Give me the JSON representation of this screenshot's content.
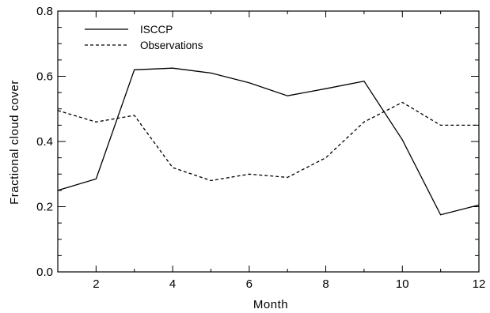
{
  "chart_data": {
    "type": "line",
    "xlabel": "Month",
    "ylabel": "Fractional cloud cover",
    "xlim": [
      1,
      12
    ],
    "ylim": [
      0.0,
      0.8
    ],
    "xticks": [
      2,
      4,
      6,
      8,
      10,
      12
    ],
    "yticks": [
      0.0,
      0.2,
      0.4,
      0.6,
      0.8
    ],
    "ytick_labels": [
      "0.0",
      "0.2",
      "0.4",
      "0.6",
      "0.8"
    ],
    "legend_position": "top-left",
    "grid": false,
    "series": [
      {
        "name": "ISCCP",
        "line_style": "solid",
        "color": "#000000",
        "x": [
          1,
          2,
          3,
          4,
          5,
          6,
          7,
          8,
          9,
          10,
          11,
          12
        ],
        "values": [
          0.25,
          0.285,
          0.62,
          0.625,
          0.61,
          0.58,
          0.54,
          0.562,
          0.585,
          0.405,
          0.175,
          0.205
        ]
      },
      {
        "name": "Observations",
        "line_style": "dashed",
        "color": "#000000",
        "x": [
          1,
          2,
          3,
          4,
          5,
          6,
          7,
          8,
          9,
          10,
          11,
          12
        ],
        "values": [
          0.495,
          0.46,
          0.48,
          0.32,
          0.28,
          0.3,
          0.29,
          0.35,
          0.46,
          0.52,
          0.45,
          0.45
        ]
      }
    ]
  }
}
